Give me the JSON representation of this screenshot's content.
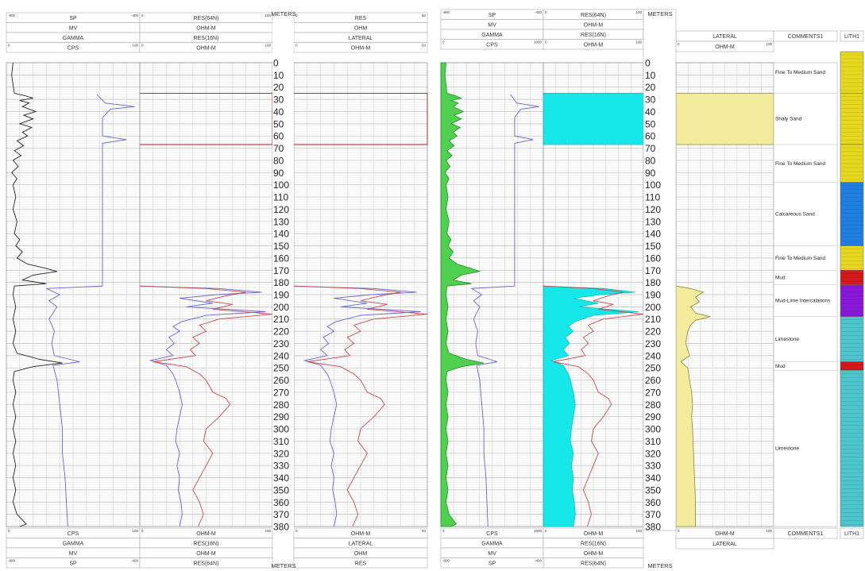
{
  "depth": {
    "header": "METERS",
    "ticks": [
      "0",
      "10",
      "20",
      "30",
      "40",
      "50",
      "60",
      "70",
      "80",
      "90",
      "100",
      "110",
      "120",
      "130",
      "140",
      "150",
      "160",
      "170",
      "180",
      "190",
      "200",
      "210",
      "220",
      "230",
      "240",
      "250",
      "260",
      "270",
      "280",
      "290",
      "300",
      "310",
      "320",
      "330",
      "340",
      "350",
      "360",
      "370",
      "380"
    ]
  },
  "panel_a": {
    "track1": {
      "rows": [
        "SP",
        "MV",
        "GAMMA",
        "CPS"
      ],
      "scale_a_min": "-800",
      "scale_a_max": "-400",
      "scale_b_min": "0",
      "scale_b_max": "100"
    },
    "track2": {
      "rows": [
        "RES(64N)",
        "OHM-M",
        "RES(16N)",
        "OHM-M"
      ],
      "scale_min": "0",
      "scale_max": "100"
    },
    "track3": {
      "rows": [
        "RES",
        "OHM",
        "LATERAL",
        "OHM-M"
      ],
      "scale_min": "0",
      "scale_max": "50"
    }
  },
  "panel_b": {
    "track1": {
      "rows": [
        "SP",
        "MV",
        "GAMMA",
        "CPS"
      ],
      "scale_a_min": "-800",
      "scale_a_max": "-400",
      "scale_b_min": "0",
      "scale_b_max": "1000"
    },
    "track2": {
      "rows": [
        "RES(64N)",
        "OHM-M",
        "RES(16N)",
        "OHM-M"
      ],
      "scale_min": "0",
      "scale_max": "100"
    },
    "lateral": {
      "title": "LATERAL",
      "unit": "OHM-M",
      "scale_min": "0",
      "scale_max": "100"
    },
    "comments_header": "COMMENTS1",
    "lith_header": "LITH1"
  },
  "lithology": [
    {
      "top": 0,
      "bottom": 25,
      "color": "#e6d81e",
      "label": "Fine To Medium Sand"
    },
    {
      "top": 25,
      "bottom": 67,
      "color": "#e6d81e",
      "label": "Shaly Sand"
    },
    {
      "top": 67,
      "bottom": 98,
      "color": "#e6d81e",
      "label": "Fine To Medium Sand"
    },
    {
      "top": 98,
      "bottom": 150,
      "color": "#1f7fe0",
      "label": "Calcareous Sand"
    },
    {
      "top": 150,
      "bottom": 170,
      "color": "#e6d81e",
      "label": "Fine To Medium Sand"
    },
    {
      "top": 170,
      "bottom": 182,
      "color": "#d61818",
      "label": "Mud"
    },
    {
      "top": 182,
      "bottom": 208,
      "color": "#8a18d8",
      "label": "Mud-Lime Intercalations"
    },
    {
      "top": 208,
      "bottom": 245,
      "color": "#4cc6cc",
      "label": "Limestone"
    },
    {
      "top": 245,
      "bottom": 252,
      "color": "#d61818",
      "label": "Mud"
    },
    {
      "top": 252,
      "bottom": 380,
      "color": "#4cc6cc",
      "label": "Limestone"
    }
  ],
  "colors": {
    "grid": "#c8c8c8",
    "gamma_fill": "#4fd04f",
    "res_fill": "#16e8ea",
    "lateral_fill": "#f2ec9c",
    "res16": "#6464d8",
    "res64": "#c84848"
  },
  "curves": {
    "gamma": [
      [
        0,
        0.05
      ],
      [
        10,
        0.04
      ],
      [
        18,
        0.05
      ],
      [
        25,
        0.06
      ],
      [
        27,
        0.14
      ],
      [
        29,
        0.2
      ],
      [
        31,
        0.1
      ],
      [
        33,
        0.17
      ],
      [
        36,
        0.12
      ],
      [
        40,
        0.22
      ],
      [
        43,
        0.13
      ],
      [
        46,
        0.2
      ],
      [
        50,
        0.1
      ],
      [
        53,
        0.19
      ],
      [
        57,
        0.12
      ],
      [
        60,
        0.16
      ],
      [
        64,
        0.08
      ],
      [
        68,
        0.13
      ],
      [
        72,
        0.06
      ],
      [
        76,
        0.11
      ],
      [
        80,
        0.05
      ],
      [
        85,
        0.09
      ],
      [
        90,
        0.04
      ],
      [
        95,
        0.08
      ],
      [
        100,
        0.05
      ],
      [
        110,
        0.07
      ],
      [
        120,
        0.05
      ],
      [
        130,
        0.08
      ],
      [
        140,
        0.06
      ],
      [
        145,
        0.1
      ],
      [
        150,
        0.07
      ],
      [
        155,
        0.12
      ],
      [
        160,
        0.08
      ],
      [
        165,
        0.16
      ],
      [
        168,
        0.28
      ],
      [
        171,
        0.38
      ],
      [
        174,
        0.2
      ],
      [
        178,
        0.12
      ],
      [
        181,
        0.3
      ],
      [
        183,
        0.06
      ],
      [
        190,
        0.05
      ],
      [
        200,
        0.07
      ],
      [
        210,
        0.05
      ],
      [
        220,
        0.07
      ],
      [
        230,
        0.05
      ],
      [
        238,
        0.08
      ],
      [
        243,
        0.25
      ],
      [
        246,
        0.42
      ],
      [
        249,
        0.2
      ],
      [
        253,
        0.06
      ],
      [
        260,
        0.05
      ],
      [
        270,
        0.07
      ],
      [
        280,
        0.05
      ],
      [
        290,
        0.07
      ],
      [
        300,
        0.05
      ],
      [
        310,
        0.07
      ],
      [
        320,
        0.05
      ],
      [
        330,
        0.07
      ],
      [
        340,
        0.05
      ],
      [
        350,
        0.07
      ],
      [
        360,
        0.05
      ],
      [
        370,
        0.08
      ],
      [
        378,
        0.15
      ],
      [
        380,
        0.1
      ]
    ],
    "sp": [
      [
        26,
        0.68
      ],
      [
        33,
        0.74
      ],
      [
        36,
        0.96
      ],
      [
        38,
        0.78
      ],
      [
        45,
        0.72
      ],
      [
        60,
        0.72
      ],
      [
        63,
        0.9
      ],
      [
        66,
        0.72
      ],
      [
        183,
        0.72
      ],
      [
        185,
        0.3
      ],
      [
        190,
        0.4
      ],
      [
        195,
        0.32
      ],
      [
        200,
        0.38
      ],
      [
        210,
        0.32
      ],
      [
        220,
        0.36
      ],
      [
        230,
        0.34
      ],
      [
        240,
        0.36
      ],
      [
        245,
        0.55
      ],
      [
        248,
        0.35
      ],
      [
        260,
        0.38
      ],
      [
        280,
        0.4
      ],
      [
        300,
        0.42
      ],
      [
        320,
        0.42
      ],
      [
        340,
        0.44
      ],
      [
        360,
        0.45
      ],
      [
        380,
        0.46
      ]
    ],
    "res16": [
      [
        183,
        0
      ],
      [
        185,
        0.6
      ],
      [
        188,
        0.92
      ],
      [
        190,
        0.58
      ],
      [
        193,
        0.3
      ],
      [
        197,
        0.55
      ],
      [
        200,
        0.35
      ],
      [
        204,
        0.95
      ],
      [
        207,
        0.5
      ],
      [
        212,
        0.32
      ],
      [
        216,
        0.25
      ],
      [
        220,
        0.3
      ],
      [
        225,
        0.22
      ],
      [
        230,
        0.26
      ],
      [
        235,
        0.2
      ],
      [
        240,
        0.25
      ],
      [
        244,
        0.08
      ],
      [
        248,
        0.2
      ],
      [
        255,
        0.25
      ],
      [
        260,
        0.27
      ],
      [
        270,
        0.3
      ],
      [
        280,
        0.32
      ],
      [
        290,
        0.3
      ],
      [
        300,
        0.28
      ],
      [
        310,
        0.27
      ],
      [
        320,
        0.3
      ],
      [
        330,
        0.28
      ],
      [
        340,
        0.3
      ],
      [
        350,
        0.29
      ],
      [
        360,
        0.31
      ],
      [
        370,
        0.32
      ],
      [
        380,
        0.3
      ]
    ],
    "res64": [
      [
        183,
        0
      ],
      [
        185,
        0.5
      ],
      [
        188,
        0.8
      ],
      [
        191,
        0.65
      ],
      [
        195,
        0.5
      ],
      [
        198,
        0.7
      ],
      [
        202,
        0.55
      ],
      [
        206,
        1.0
      ],
      [
        210,
        0.6
      ],
      [
        215,
        0.45
      ],
      [
        220,
        0.5
      ],
      [
        225,
        0.4
      ],
      [
        230,
        0.45
      ],
      [
        235,
        0.38
      ],
      [
        240,
        0.42
      ],
      [
        245,
        0.1
      ],
      [
        249,
        0.35
      ],
      [
        255,
        0.45
      ],
      [
        260,
        0.5
      ],
      [
        270,
        0.55
      ],
      [
        275,
        0.65
      ],
      [
        280,
        0.68
      ],
      [
        290,
        0.6
      ],
      [
        300,
        0.5
      ],
      [
        310,
        0.48
      ],
      [
        320,
        0.55
      ],
      [
        330,
        0.5
      ],
      [
        340,
        0.45
      ],
      [
        350,
        0.4
      ],
      [
        360,
        0.45
      ],
      [
        370,
        0.48
      ],
      [
        380,
        0.44
      ]
    ],
    "lateral": [
      [
        0,
        0
      ],
      [
        25,
        0
      ],
      [
        25,
        1
      ],
      [
        67,
        1
      ],
      [
        67,
        0
      ],
      [
        183,
        0
      ],
      [
        185,
        0.15
      ],
      [
        188,
        0.28
      ],
      [
        192,
        0.2
      ],
      [
        196,
        0.24
      ],
      [
        200,
        0.15
      ],
      [
        205,
        0.2
      ],
      [
        208,
        0.35
      ],
      [
        211,
        0.2
      ],
      [
        215,
        0.15
      ],
      [
        220,
        0.12
      ],
      [
        230,
        0.1
      ],
      [
        240,
        0.14
      ],
      [
        245,
        0.05
      ],
      [
        250,
        0.12
      ],
      [
        260,
        0.14
      ],
      [
        270,
        0.16
      ],
      [
        280,
        0.17
      ],
      [
        290,
        0.16
      ],
      [
        300,
        0.17
      ],
      [
        320,
        0.18
      ],
      [
        340,
        0.19
      ],
      [
        360,
        0.2
      ],
      [
        380,
        0.2
      ]
    ],
    "resA_red": [
      [
        25,
        0
      ],
      [
        25,
        1
      ],
      [
        67,
        1
      ],
      [
        67,
        0
      ]
    ]
  }
}
